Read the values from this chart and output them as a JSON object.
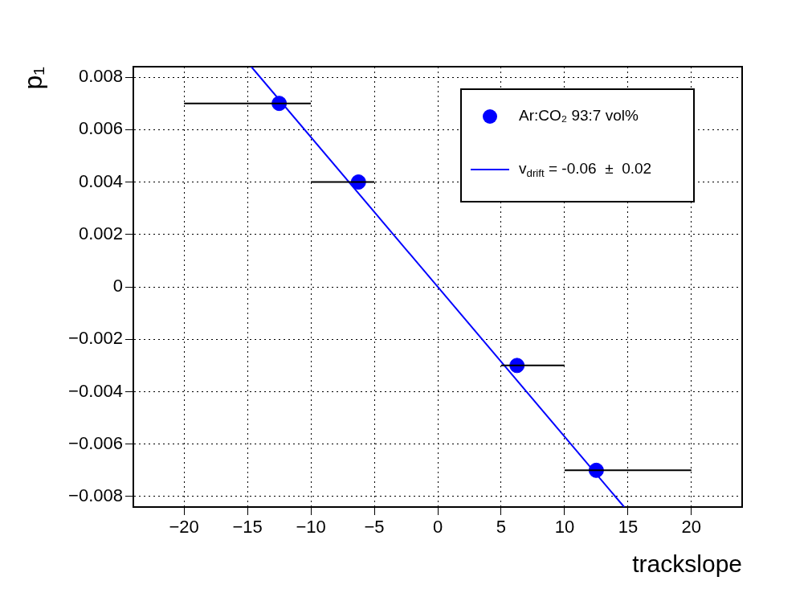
{
  "chart_data": {
    "type": "scatter",
    "xlabel": "trackslope",
    "ylabel": "p₁",
    "xlim": [
      -24,
      24
    ],
    "xticks": [
      {
        "value": -20,
        "label": "−20"
      },
      {
        "value": -15,
        "label": "−15"
      },
      {
        "value": -10,
        "label": "−10"
      },
      {
        "value": -5,
        "label": "−5"
      },
      0,
      5,
      10,
      15,
      20
    ],
    "ylim": [
      -0.0084,
      0.0084
    ],
    "yticks": [
      {
        "value": -0.008,
        "label": "−0.008"
      },
      {
        "value": -0.006,
        "label": "−0.006"
      },
      {
        "value": -0.004,
        "label": "−0.004"
      },
      {
        "value": -0.002,
        "label": "−0.002"
      },
      0,
      0.002,
      0.004,
      0.006,
      0.008
    ],
    "grid": true,
    "legend": "top right",
    "series": [
      {
        "name": "Ar:CO₂ 93:7 vol%",
        "marker": "circle",
        "color": "#0000ff",
        "x": [
          -12.5,
          -6.25,
          6.25,
          12.5
        ],
        "values": [
          0.007,
          0.004,
          -0.003,
          -0.007
        ],
        "xerrors": [
          [
            -20,
            -10
          ],
          [
            -10,
            -5
          ],
          [
            5,
            10
          ],
          [
            10,
            20
          ]
        ]
      },
      {
        "name": "v$_{drift}$ = -0.06  ±  0.02",
        "type": "line",
        "marker": "none",
        "line_style": "solid",
        "color": "#0000ff",
        "x": [
          -14.7,
          14.7
        ],
        "values": [
          0.0084,
          -0.0084
        ]
      }
    ]
  }
}
